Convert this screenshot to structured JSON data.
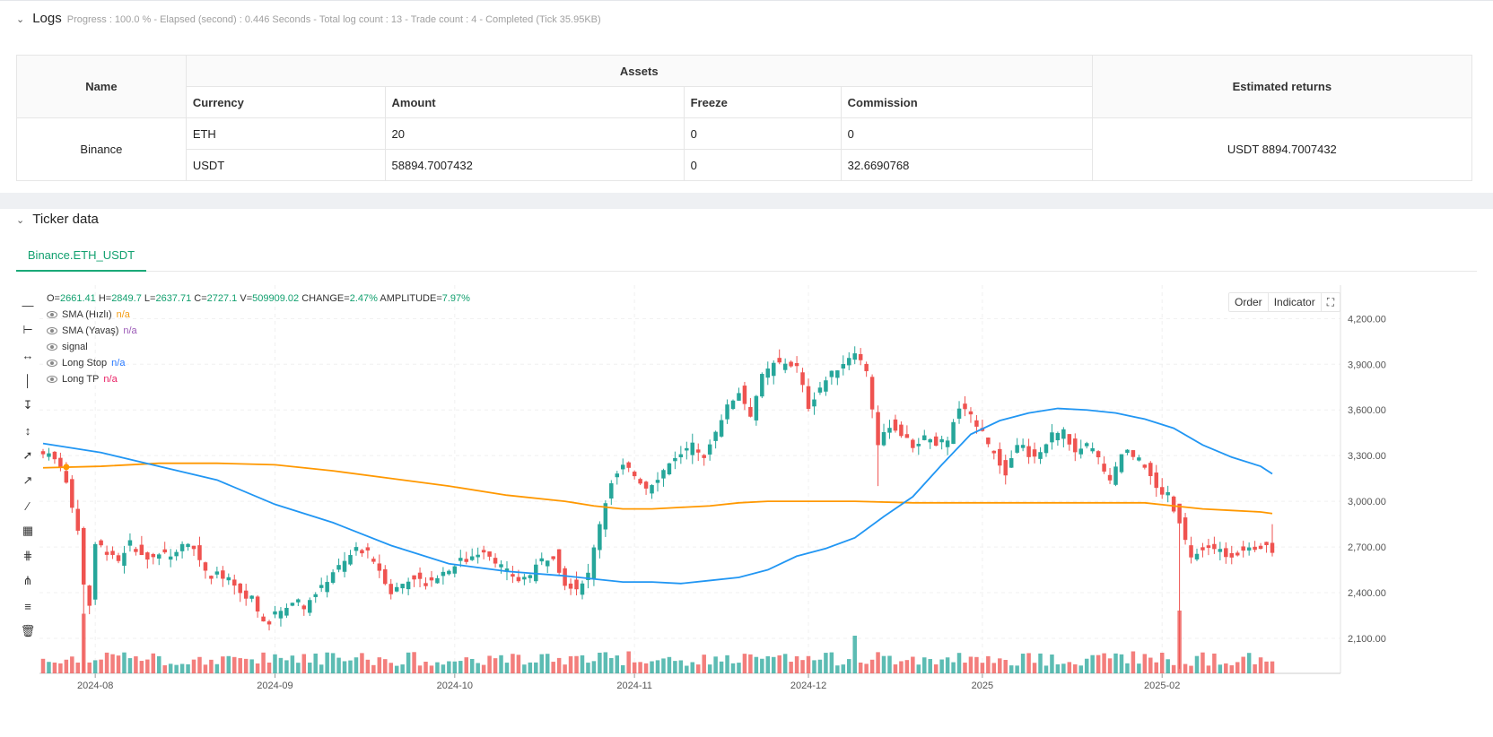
{
  "logs": {
    "title": "Logs",
    "meta": "Progress : 100.0 % - Elapsed (second) : 0.446  Seconds - Total log count : 13 - Trade count : 4 - Completed (Tick 35.95KB)"
  },
  "assets_table": {
    "col_name": "Name",
    "col_assets": "Assets",
    "col_returns": "Estimated returns",
    "sub_headers": [
      "Currency",
      "Amount",
      "Freeze",
      "Commission"
    ],
    "exchange": "Binance",
    "rows": [
      {
        "currency": "ETH",
        "amount": "20",
        "freeze": "0",
        "commission": "0"
      },
      {
        "currency": "USDT",
        "amount": "58894.7007432",
        "freeze": "0",
        "commission": "32.6690768"
      }
    ],
    "estimated_returns": "USDT 8894.7007432"
  },
  "ticker": {
    "title": "Ticker data",
    "tab": "Binance.ETH_USDT"
  },
  "legend": {
    "o_label": "O=",
    "o": "2661.41",
    "h_label": "H=",
    "h": "2849.7",
    "l_label": "L=",
    "l": "2637.71",
    "c_label": "C=",
    "c": "2727.1",
    "vol_label": "V=",
    "vol": "509909.02",
    "change_label": "CHANGE=",
    "change": "2.47%",
    "amp_label": "AMPLITUDE=",
    "amp": "7.97%",
    "series": [
      {
        "name": "SMA (Hızlı)",
        "value": "n/a",
        "color": "#f39c12"
      },
      {
        "name": "SMA (Yavaş)",
        "value": "n/a",
        "color": "#9b59b6"
      },
      {
        "name": "signal",
        "value": "",
        "color": "#333333"
      },
      {
        "name": "Long Stop",
        "value": "n/a",
        "color": "#2979ff"
      },
      {
        "name": "Long TP",
        "value": "n/a",
        "color": "#e91e63"
      }
    ]
  },
  "chart_buttons": {
    "order": "Order",
    "indicator": "Indicator"
  },
  "chart_data": {
    "type": "candlestick",
    "symbol": "Binance.ETH_USDT",
    "y_ticks": [
      "4,200.00",
      "3,900.00",
      "3,600.00",
      "3,300.00",
      "3,000.00",
      "2,700.00",
      "2,400.00",
      "2,100.00"
    ],
    "y_tick_values": [
      4200,
      3900,
      3600,
      3300,
      3000,
      2700,
      2400,
      2100
    ],
    "x_ticks": [
      "2024-08",
      "2024-09",
      "2024-10",
      "2024-11",
      "2024-12",
      "2025",
      "2025-02"
    ],
    "ylim": [
      1870,
      4420
    ],
    "up_color": "#26a69a",
    "down_color": "#ef5350",
    "sma_fast_color": "#2196f3",
    "sma_slow_color": "#ff9800",
    "close_path": [
      [
        0,
        3330
      ],
      [
        3,
        3240
      ],
      [
        5,
        2970
      ],
      [
        6,
        2820
      ],
      [
        7,
        2460
      ],
      [
        8,
        2320
      ],
      [
        9,
        2720
      ],
      [
        11,
        2690
      ],
      [
        13,
        2610
      ],
      [
        15,
        2730
      ],
      [
        18,
        2620
      ],
      [
        20,
        2670
      ],
      [
        22,
        2640
      ],
      [
        24,
        2730
      ],
      [
        26,
        2690
      ],
      [
        28,
        2550
      ],
      [
        30,
        2510
      ],
      [
        32,
        2460
      ],
      [
        34,
        2400
      ],
      [
        36,
        2330
      ],
      [
        38,
        2210
      ],
      [
        40,
        2260
      ],
      [
        43,
        2340
      ],
      [
        45,
        2310
      ],
      [
        48,
        2430
      ],
      [
        50,
        2540
      ],
      [
        52,
        2600
      ],
      [
        54,
        2690
      ],
      [
        56,
        2660
      ],
      [
        58,
        2550
      ],
      [
        60,
        2400
      ],
      [
        62,
        2460
      ],
      [
        64,
        2500
      ],
      [
        66,
        2460
      ],
      [
        68,
        2510
      ],
      [
        70,
        2560
      ],
      [
        72,
        2600
      ],
      [
        74,
        2640
      ],
      [
        76,
        2680
      ],
      [
        78,
        2610
      ],
      [
        80,
        2540
      ],
      [
        82,
        2480
      ],
      [
        84,
        2520
      ],
      [
        86,
        2610
      ],
      [
        88,
        2640
      ],
      [
        90,
        2460
      ],
      [
        92,
        2430
      ],
      [
        94,
        2520
      ],
      [
        96,
        2860
      ],
      [
        98,
        3130
      ],
      [
        100,
        3230
      ],
      [
        102,
        3170
      ],
      [
        104,
        3090
      ],
      [
        106,
        3150
      ],
      [
        108,
        3250
      ],
      [
        110,
        3300
      ],
      [
        112,
        3380
      ],
      [
        114,
        3280
      ],
      [
        116,
        3470
      ],
      [
        118,
        3620
      ],
      [
        120,
        3720
      ],
      [
        122,
        3570
      ],
      [
        124,
        3820
      ],
      [
        126,
        3900
      ],
      [
        128,
        3910
      ],
      [
        130,
        3880
      ],
      [
        132,
        3620
      ],
      [
        134,
        3750
      ],
      [
        136,
        3840
      ],
      [
        138,
        3910
      ],
      [
        140,
        3990
      ],
      [
        142,
        3860
      ],
      [
        144,
        3370
      ],
      [
        146,
        3500
      ],
      [
        148,
        3440
      ],
      [
        150,
        3360
      ],
      [
        152,
        3420
      ],
      [
        154,
        3350
      ],
      [
        156,
        3410
      ],
      [
        158,
        3610
      ],
      [
        160,
        3570
      ],
      [
        162,
        3450
      ],
      [
        164,
        3300
      ],
      [
        166,
        3180
      ],
      [
        168,
        3380
      ],
      [
        170,
        3300
      ],
      [
        172,
        3320
      ],
      [
        174,
        3440
      ],
      [
        176,
        3460
      ],
      [
        178,
        3310
      ],
      [
        180,
        3350
      ],
      [
        182,
        3280
      ],
      [
        184,
        3120
      ],
      [
        186,
        3310
      ],
      [
        188,
        3300
      ],
      [
        190,
        3250
      ],
      [
        192,
        3080
      ],
      [
        194,
        3030
      ],
      [
        196,
        2870
      ],
      [
        197,
        2740
      ],
      [
        198,
        2620
      ],
      [
        200,
        2700
      ],
      [
        202,
        2690
      ],
      [
        204,
        2640
      ],
      [
        206,
        2660
      ],
      [
        208,
        2680
      ],
      [
        210,
        2700
      ],
      [
        212,
        2730
      ]
    ],
    "sma_fast": [
      [
        0,
        3380
      ],
      [
        10,
        3320
      ],
      [
        20,
        3230
      ],
      [
        30,
        3140
      ],
      [
        40,
        2980
      ],
      [
        50,
        2860
      ],
      [
        60,
        2710
      ],
      [
        70,
        2590
      ],
      [
        80,
        2540
      ],
      [
        90,
        2510
      ],
      [
        95,
        2490
      ],
      [
        100,
        2470
      ],
      [
        105,
        2470
      ],
      [
        110,
        2460
      ],
      [
        115,
        2480
      ],
      [
        120,
        2500
      ],
      [
        125,
        2550
      ],
      [
        130,
        2640
      ],
      [
        135,
        2690
      ],
      [
        140,
        2760
      ],
      [
        145,
        2900
      ],
      [
        150,
        3030
      ],
      [
        155,
        3240
      ],
      [
        160,
        3440
      ],
      [
        165,
        3530
      ],
      [
        170,
        3580
      ],
      [
        175,
        3610
      ],
      [
        180,
        3600
      ],
      [
        185,
        3580
      ],
      [
        190,
        3540
      ],
      [
        195,
        3480
      ],
      [
        200,
        3370
      ],
      [
        205,
        3290
      ],
      [
        210,
        3230
      ],
      [
        212,
        3180
      ]
    ],
    "sma_slow": [
      [
        0,
        3220
      ],
      [
        10,
        3230
      ],
      [
        20,
        3250
      ],
      [
        30,
        3250
      ],
      [
        40,
        3240
      ],
      [
        50,
        3200
      ],
      [
        60,
        3150
      ],
      [
        70,
        3100
      ],
      [
        80,
        3040
      ],
      [
        90,
        3000
      ],
      [
        95,
        2970
      ],
      [
        100,
        2950
      ],
      [
        105,
        2950
      ],
      [
        110,
        2960
      ],
      [
        115,
        2970
      ],
      [
        120,
        2990
      ],
      [
        125,
        3000
      ],
      [
        130,
        3000
      ],
      [
        140,
        3000
      ],
      [
        150,
        2990
      ],
      [
        160,
        2990
      ],
      [
        170,
        2990
      ],
      [
        180,
        2990
      ],
      [
        190,
        2990
      ],
      [
        195,
        2970
      ],
      [
        200,
        2950
      ],
      [
        205,
        2940
      ],
      [
        210,
        2930
      ],
      [
        212,
        2920
      ]
    ],
    "volume_spikes": [
      [
        7,
        0.95
      ],
      [
        140,
        0.6
      ],
      [
        196,
        1.0
      ],
      [
        188,
        0.35
      ],
      [
        174,
        0.3
      ],
      [
        101,
        0.35
      ]
    ]
  }
}
